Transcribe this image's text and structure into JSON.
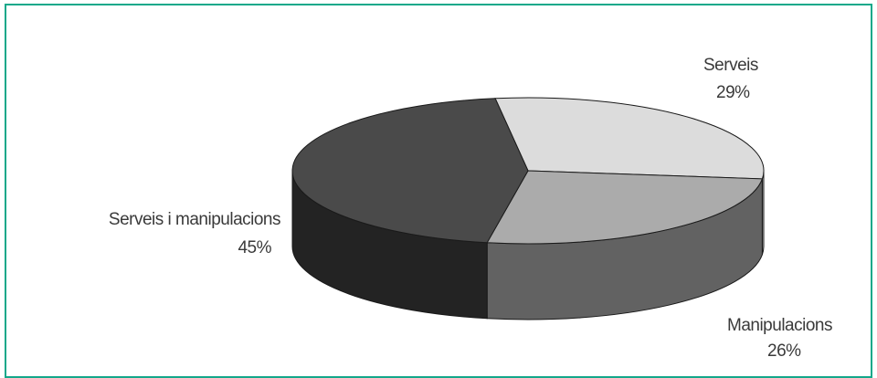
{
  "chart_data": {
    "type": "pie",
    "three_d": true,
    "title": "",
    "slices": [
      {
        "label": "Serveis",
        "value": 29,
        "value_label": "29%",
        "color": "#dcdcdc",
        "side_color": "#bdbdbd"
      },
      {
        "label": "Manipulacions",
        "value": 26,
        "value_label": "26%",
        "color": "#ababab",
        "side_color": "#626262"
      },
      {
        "label": "Serveis i manipulacions",
        "value": 45,
        "value_label": "45%",
        "color": "#4a4a4a",
        "side_color": "#232323"
      }
    ],
    "frame_color": "#14a88a"
  }
}
